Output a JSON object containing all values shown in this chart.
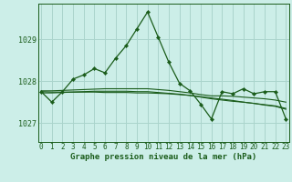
{
  "title": "Graphe pression niveau de la mer (hPa)",
  "bg_color": "#cceee8",
  "grid_color": "#aad4cc",
  "line_color": "#1a5c1a",
  "x_ticks": [
    0,
    1,
    2,
    3,
    4,
    5,
    6,
    7,
    8,
    9,
    10,
    11,
    12,
    13,
    14,
    15,
    16,
    17,
    18,
    19,
    20,
    21,
    22,
    23
  ],
  "y_ticks": [
    1027,
    1028,
    1029
  ],
  "ylim": [
    1026.55,
    1029.85
  ],
  "xlim": [
    -0.3,
    23.3
  ],
  "series": {
    "line1": [
      1027.75,
      1027.5,
      1027.75,
      1028.05,
      1028.15,
      1028.3,
      1028.2,
      1028.55,
      1028.85,
      1029.25,
      1029.65,
      1029.05,
      1028.45,
      1027.95,
      1027.77,
      1027.45,
      1027.1,
      1027.75,
      1027.7,
      1027.82,
      1027.7,
      1027.75,
      1027.75,
      1027.1
    ],
    "line2": [
      1027.77,
      1027.77,
      1027.78,
      1027.79,
      1027.8,
      1027.81,
      1027.82,
      1027.82,
      1027.82,
      1027.82,
      1027.82,
      1027.8,
      1027.78,
      1027.75,
      1027.72,
      1027.68,
      1027.65,
      1027.65,
      1027.64,
      1027.62,
      1027.6,
      1027.58,
      1027.55,
      1027.5
    ],
    "line3": [
      1027.72,
      1027.72,
      1027.73,
      1027.74,
      1027.75,
      1027.76,
      1027.76,
      1027.76,
      1027.76,
      1027.75,
      1027.75,
      1027.73,
      1027.71,
      1027.69,
      1027.66,
      1027.62,
      1027.58,
      1027.55,
      1027.52,
      1027.5,
      1027.47,
      1027.44,
      1027.41,
      1027.35
    ],
    "line4": [
      1027.75,
      1027.74,
      1027.74,
      1027.74,
      1027.74,
      1027.74,
      1027.73,
      1027.73,
      1027.73,
      1027.72,
      1027.72,
      1027.71,
      1027.7,
      1027.68,
      1027.66,
      1027.63,
      1027.6,
      1027.57,
      1027.54,
      1027.5,
      1027.47,
      1027.43,
      1027.4,
      1027.33
    ]
  },
  "tick_fontsize": 5.5,
  "label_fontsize": 6.5
}
